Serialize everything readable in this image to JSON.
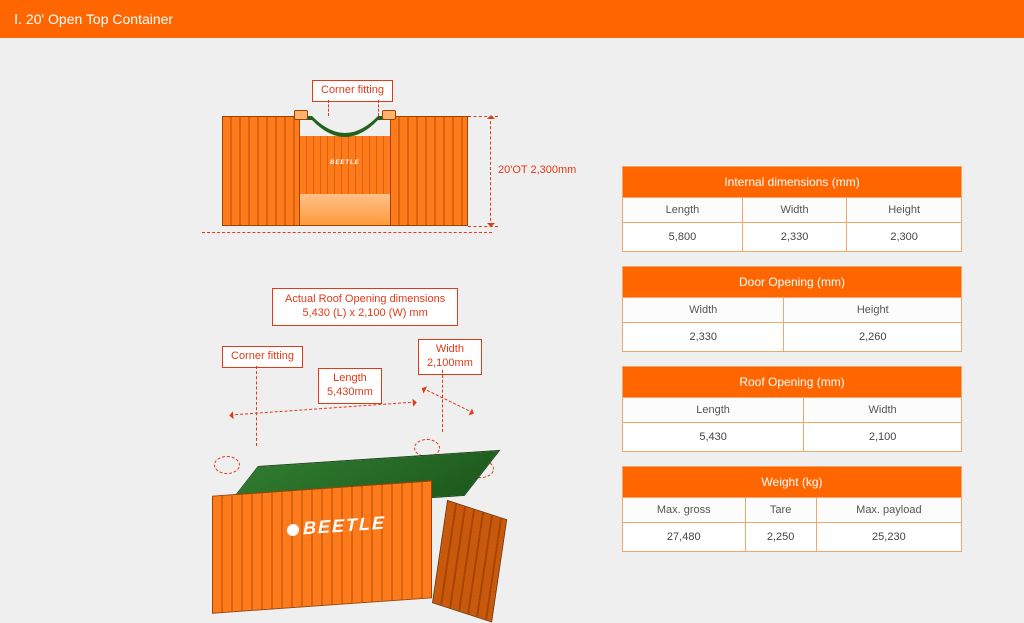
{
  "colors": {
    "orange": "#ff6600",
    "orange_dark": "#e65c00",
    "border": "#f2a76a",
    "red": "#e03a1a"
  },
  "title": "Ⅰ. 20' Open Top Container",
  "brand": "BEETLE",
  "front": {
    "corner_fitting": "Corner fitting",
    "height_label": "20'OT 2,300mm"
  },
  "iso": {
    "roof_caption_l1": "Actual Roof Opening dimensions",
    "roof_caption_l2": "5,430 (L) x 2,100 (W) mm",
    "corner_fitting": "Corner fitting",
    "width_l1": "Width",
    "width_l2": "2,100mm",
    "length_l1": "Length",
    "length_l2": "5,430mm"
  },
  "specs": [
    {
      "title": "Internal dimensions (mm)",
      "headers": [
        "Length",
        "Width",
        "Height"
      ],
      "values": [
        "5,800",
        "2,330",
        "2,300"
      ]
    },
    {
      "title": "Door Opening (mm)",
      "headers": [
        "Width",
        "Height"
      ],
      "values": [
        "2,330",
        "2,260"
      ]
    },
    {
      "title": "Roof Opening (mm)",
      "headers": [
        "Length",
        "Width"
      ],
      "values": [
        "5,430",
        "2,100"
      ]
    },
    {
      "title": "Weight (kg)",
      "headers": [
        "Max. gross",
        "Tare",
        "Max. payload"
      ],
      "values": [
        "27,480",
        "2,250",
        "25,230"
      ]
    }
  ]
}
